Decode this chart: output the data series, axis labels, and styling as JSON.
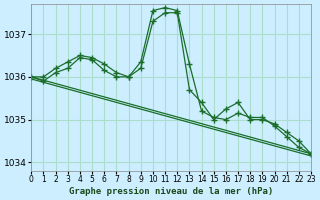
{
  "title": "Graphe pression niveau de la mer (hPa)",
  "background_color": "#cceeff",
  "grid_color": "#aaddcc",
  "line_color": "#1a6e2a",
  "xlim": [
    0,
    23
  ],
  "ylim": [
    1033.8,
    1037.7
  ],
  "yticks": [
    1034,
    1035,
    1036,
    1037
  ],
  "xticks": [
    0,
    1,
    2,
    3,
    4,
    5,
    6,
    7,
    8,
    9,
    10,
    11,
    12,
    13,
    14,
    15,
    16,
    17,
    18,
    19,
    20,
    21,
    22,
    23
  ],
  "series": [
    {
      "x": [
        0,
        1,
        2,
        3,
        4,
        5,
        6,
        7,
        8,
        9,
        10,
        11,
        12,
        13,
        14,
        15,
        16,
        17,
        18,
        19,
        20,
        21,
        22,
        23
      ],
      "y": [
        1036.0,
        1036.0,
        1036.2,
        1036.35,
        1036.5,
        1036.45,
        1036.3,
        1036.1,
        1036.0,
        1036.35,
        1037.55,
        1037.62,
        1037.55,
        1036.3,
        1035.2,
        1035.05,
        1035.0,
        1035.15,
        1035.05,
        1035.05,
        1034.85,
        1034.6,
        1034.35,
        1034.2
      ],
      "markers": true
    },
    {
      "x": [
        0,
        1,
        2,
        3,
        4,
        5,
        6,
        7,
        8,
        9,
        10,
        11,
        12,
        13,
        14,
        15,
        16,
        17,
        18,
        19,
        20,
        21,
        22,
        23
      ],
      "y": [
        1036.0,
        1035.9,
        1036.1,
        1036.2,
        1036.45,
        1036.4,
        1036.15,
        1036.0,
        1036.0,
        1036.2,
        1037.3,
        1037.5,
        1037.5,
        1035.7,
        1035.4,
        1035.0,
        1035.25,
        1035.4,
        1035.0,
        1035.0,
        1034.9,
        1034.7,
        1034.5,
        1034.2
      ],
      "markers": true
    },
    {
      "x": [
        0,
        23
      ],
      "y": [
        1036.0,
        1034.2
      ],
      "markers": false
    },
    {
      "x": [
        0,
        23
      ],
      "y": [
        1035.95,
        1034.15
      ],
      "markers": false
    }
  ]
}
